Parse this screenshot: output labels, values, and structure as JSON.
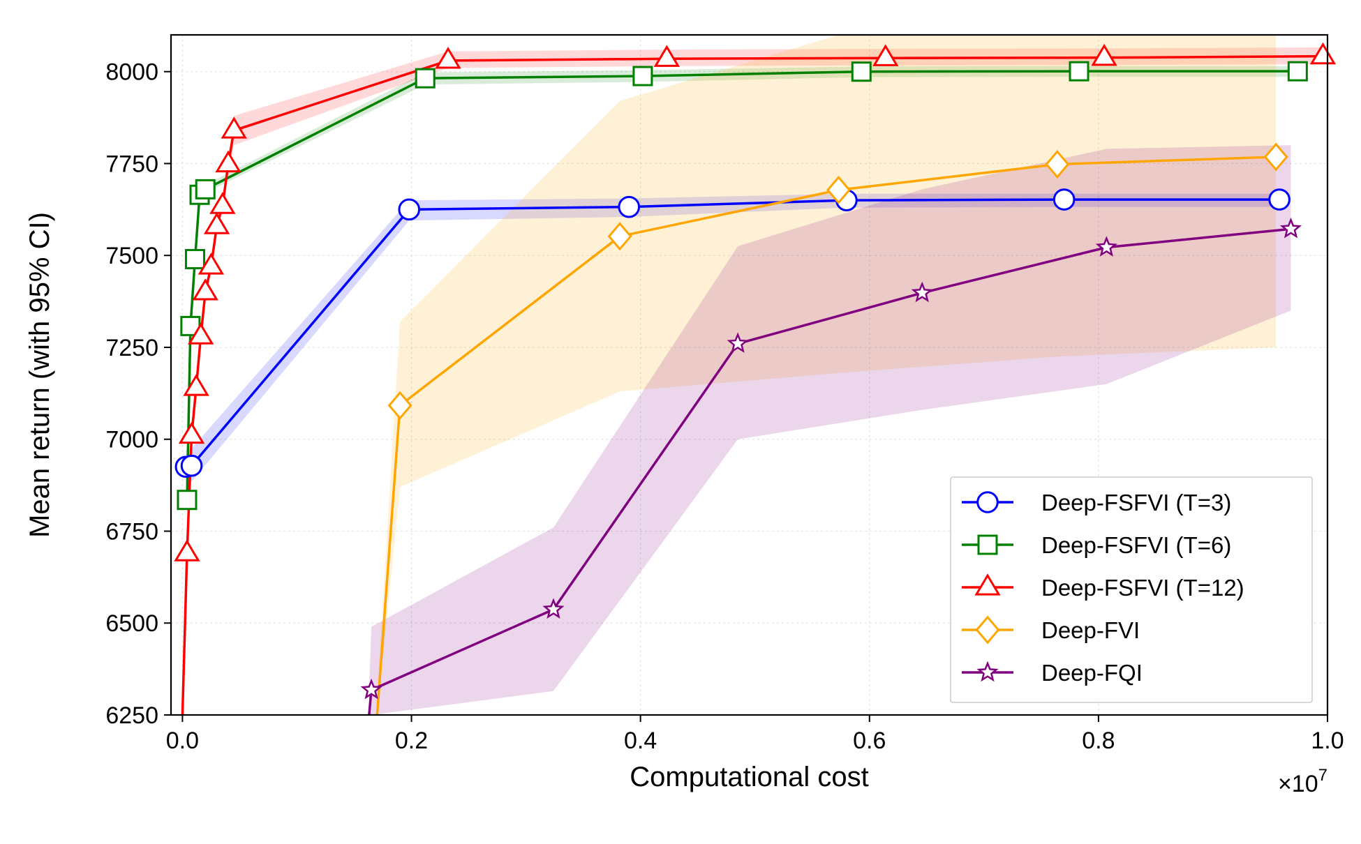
{
  "chart_data": {
    "type": "line",
    "title": "",
    "xlabel": "Computational cost",
    "ylabel": "Mean return (with 95% CI)",
    "x_multiplier_label": "×10",
    "x_multiplier_exponent": "7",
    "xlim": [
      -0.01,
      1.0
    ],
    "ylim": [
      6250,
      8100
    ],
    "xticks": [
      0.0,
      0.2,
      0.4,
      0.6,
      0.8,
      1.0
    ],
    "xtick_labels": [
      "0.0",
      "0.2",
      "0.4",
      "0.6",
      "0.8",
      "1.0"
    ],
    "yticks": [
      6250,
      6500,
      6750,
      7000,
      7250,
      7500,
      7750,
      8000
    ],
    "ytick_labels": [
      "6250",
      "6500",
      "6750",
      "7000",
      "7250",
      "7500",
      "7750",
      "8000"
    ],
    "grid": true,
    "legend_position": "lower-right",
    "series": [
      {
        "name": "Deep-FSFVI (T=3)",
        "color": "#0000ff",
        "marker": "circle",
        "x": [
          0.003,
          0.008,
          0.198,
          0.39,
          0.58,
          0.77,
          0.958
        ],
        "y": [
          6925,
          6928,
          7625,
          7632,
          7650,
          7652,
          7652
        ],
        "ci_lower": [
          6880,
          6885,
          7595,
          7605,
          7630,
          7632,
          7632
        ],
        "ci_upper": [
          6970,
          6975,
          7650,
          7655,
          7668,
          7668,
          7668
        ]
      },
      {
        "name": "Deep-FSFVI (T=6)",
        "color": "#008000",
        "marker": "square",
        "x": [
          0.004,
          0.007,
          0.011,
          0.015,
          0.02,
          0.212,
          0.402,
          0.593,
          0.783,
          0.974
        ],
        "y": [
          6835,
          7308,
          7490,
          7665,
          7680,
          7982,
          7988,
          8000,
          8001,
          8001
        ],
        "ci_lower": [
          6820,
          7295,
          7478,
          7655,
          7670,
          7965,
          7972,
          7985,
          7986,
          7986
        ],
        "ci_upper": [
          6850,
          7322,
          7502,
          7676,
          7692,
          7998,
          8004,
          8014,
          8015,
          8015
        ]
      },
      {
        "name": "Deep-FSFVI (T=12)",
        "color": "#ff0000",
        "marker": "triangle",
        "x": [
          0.0,
          0.004,
          0.008,
          0.012,
          0.016,
          0.02,
          0.025,
          0.03,
          0.035,
          0.04,
          0.045,
          0.232,
          0.423,
          0.614,
          0.805,
          0.996
        ],
        "y": [
          6250,
          6690,
          7010,
          7140,
          7280,
          7400,
          7470,
          7580,
          7635,
          7748,
          7840,
          8030,
          8035,
          8037,
          8038,
          8042
        ],
        "ci_lower": [
          6250,
          6660,
          6990,
          7120,
          7265,
          7385,
          7455,
          7565,
          7615,
          7725,
          7800,
          8010,
          8015,
          8017,
          8018,
          8020
        ],
        "ci_upper": [
          6260,
          6720,
          7030,
          7160,
          7295,
          7415,
          7485,
          7595,
          7655,
          7770,
          7880,
          8055,
          8060,
          8062,
          8063,
          8066
        ]
      },
      {
        "name": "Deep-FVI",
        "color": "#ffa500",
        "marker": "diamond",
        "x": [
          0.17,
          0.19,
          0.382,
          0.573,
          0.764,
          0.955
        ],
        "y": [
          6250,
          7092,
          7552,
          7678,
          7748,
          7768
        ],
        "ci_lower": [
          6250,
          6870,
          7130,
          7180,
          7225,
          7250
        ],
        "ci_upper": [
          6300,
          7320,
          7920,
          8100,
          8100,
          8100
        ]
      },
      {
        "name": "Deep-FQI",
        "color": "#800080",
        "marker": "star",
        "x": [
          0.163,
          0.165,
          0.324,
          0.485,
          0.646,
          0.807,
          0.968
        ],
        "y": [
          6250,
          6318,
          6537,
          7260,
          7398,
          7522,
          7572
        ],
        "ci_lower": [
          6250,
          6250,
          6315,
          7000,
          7080,
          7150,
          7350
        ],
        "ci_upper": [
          6320,
          6490,
          6760,
          7525,
          7680,
          7790,
          7800
        ]
      }
    ]
  }
}
